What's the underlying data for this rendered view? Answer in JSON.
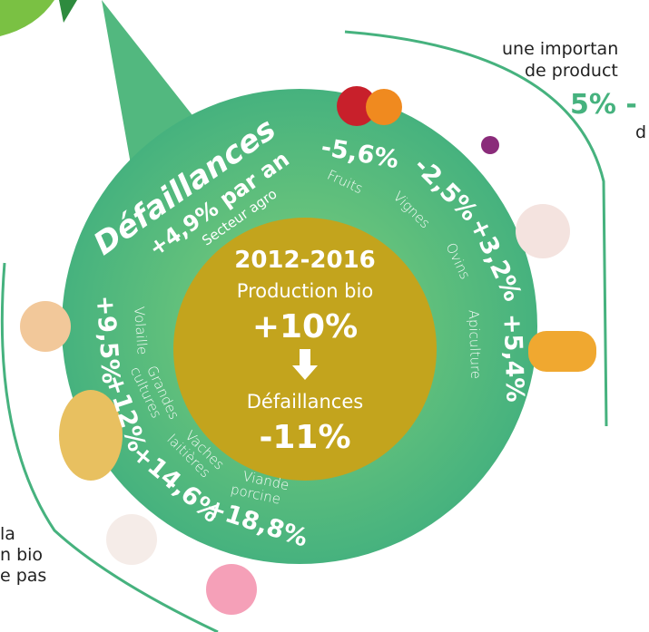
{
  "header": {
    "lines": [
      "une importan",
      "de product"
    ],
    "highlight": "5% -",
    "tail": "d"
  },
  "footer": {
    "lines": [
      "la",
      "n bio",
      "e pas"
    ]
  },
  "badge": {
    "title": "Défaillances",
    "rate": "+4,9% par an",
    "sector": "Secteur agro"
  },
  "center": {
    "period": "2012-2016",
    "label1": "Production bio",
    "value1": "+10%",
    "label2": "Défaillances",
    "value2": "-11%"
  },
  "segments": [
    {
      "value": "-5,6%",
      "label": [
        "Fruits"
      ]
    },
    {
      "value": "-2,5%",
      "label": [
        "Vignes"
      ]
    },
    {
      "value": "+3,2%",
      "label": [
        "Ovins"
      ]
    },
    {
      "value": "+5,4%",
      "label": [
        "Apiculture"
      ]
    },
    {
      "value": "+18,8%",
      "label": [
        "Viande",
        "porcine"
      ]
    },
    {
      "value": "+14,6%",
      "label": [
        "Vaches",
        "laitières"
      ]
    },
    {
      "value": "+12%",
      "label": [
        "Grandes",
        "cultures"
      ]
    },
    {
      "value": "+9,5%",
      "label": [
        "Volaille"
      ]
    }
  ]
}
